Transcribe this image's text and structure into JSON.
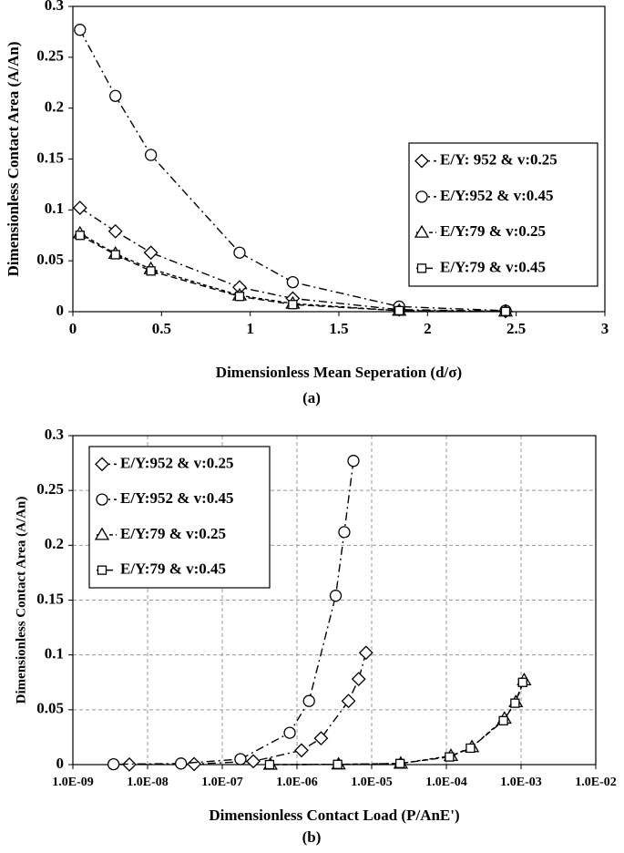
{
  "chart_data": [
    {
      "type": "line",
      "caption": "(a)",
      "x_label": "Dimensionless Mean  Seperation (d/σ)",
      "y_label": "Dimensionless Contact Area (A/An)",
      "x": [
        0.04,
        0.24,
        0.44,
        0.94,
        1.24,
        1.84,
        2.44
      ],
      "xlim": [
        0,
        3
      ],
      "xticks": [
        0,
        0.5,
        1,
        1.5,
        2,
        2.5,
        3
      ],
      "ylim": [
        0,
        0.3
      ],
      "yticks": [
        0,
        0.05,
        0.1,
        0.15,
        0.2,
        0.25,
        0.3
      ],
      "grid": false,
      "log_x": false,
      "legend": "center right",
      "series": [
        {
          "name": "E/Y: 952 & v:0.25",
          "color": "#000000",
          "marker": "diamond",
          "linestyle": "dashdot",
          "values": [
            0.102,
            0.079,
            0.058,
            0.024,
            0.013,
            0.002,
            0.0005
          ]
        },
        {
          "name": "E/Y:952 & v:0.45",
          "color": "#000000",
          "marker": "circle",
          "linestyle": "dashdot",
          "values": [
            0.277,
            0.212,
            0.154,
            0.058,
            0.029,
            0.005,
            0.001
          ]
        },
        {
          "name": "E/Y:79 & v:0.25",
          "color": "#000000",
          "marker": "triangle",
          "linestyle": "dotted",
          "values": [
            0.077,
            0.057,
            0.042,
            0.016,
            0.008,
            0.001,
            0.0002
          ]
        },
        {
          "name": "E/Y:79 & v:0.45",
          "color": "#000000",
          "marker": "square",
          "linestyle": "dashed",
          "values": [
            0.075,
            0.056,
            0.04,
            0.015,
            0.007,
            0.001,
            0.0002
          ]
        }
      ]
    },
    {
      "type": "line",
      "caption": "(b)",
      "x_label": "Dimensionless Contact Load (P/AnE')",
      "y_label": "Dimensionless Contact Area (A/An)",
      "xlim": [
        1e-09,
        0.01
      ],
      "xticks": [
        {
          "value": 1e-09,
          "label": "1.0E-09"
        },
        {
          "value": 1e-08,
          "label": "1.0E-08"
        },
        {
          "value": 1e-07,
          "label": "1.0E-07"
        },
        {
          "value": 1e-06,
          "label": "1.0E-06"
        },
        {
          "value": 1e-05,
          "label": "1.0E-05"
        },
        {
          "value": 0.0001,
          "label": "1.0E-04"
        },
        {
          "value": 0.001,
          "label": "1.0E-03"
        },
        {
          "value": 0.01,
          "label": "1.0E-02"
        }
      ],
      "ylim": [
        0,
        0.3
      ],
      "yticks": [
        0,
        0.05,
        0.1,
        0.15,
        0.2,
        0.25,
        0.3
      ],
      "grid": true,
      "log_x": true,
      "legend": "upper left",
      "series": [
        {
          "name": "E/Y:952 & v:0.25",
          "color": "#000000",
          "marker": "diamond",
          "linestyle": "dashdot",
          "x": [
            8.4e-06,
            6.7e-06,
            4.9e-06,
            2.1e-06,
            1.15e-06,
            2.6e-07,
            4.2e-08,
            5.7e-09
          ],
          "values": [
            0.102,
            0.078,
            0.058,
            0.024,
            0.013,
            0.003,
            0.0005,
            0.0001
          ]
        },
        {
          "name": "E/Y:952 & v:0.45",
          "color": "#000000",
          "marker": "circle",
          "linestyle": "dashdot",
          "x": [
            5.7e-06,
            4.3e-06,
            3.3e-06,
            1.45e-06,
            8e-07,
            1.75e-07,
            2.8e-08,
            3.5e-09
          ],
          "values": [
            0.277,
            0.212,
            0.154,
            0.058,
            0.029,
            0.005,
            0.001,
            0.0003
          ]
        },
        {
          "name": "E/Y:79 & v:0.25",
          "color": "#000000",
          "marker": "triangle",
          "linestyle": "dotted",
          "x": [
            0.0011,
            0.00085,
            0.0006,
            0.00022,
            0.000115,
            2.45e-05,
            3.6e-06,
            4.4e-07
          ],
          "values": [
            0.077,
            0.057,
            0.042,
            0.016,
            0.008,
            0.001,
            0.0002,
            0
          ]
        },
        {
          "name": "E/Y:79 & v:0.45",
          "color": "#000000",
          "marker": "square",
          "linestyle": "dashed",
          "x": [
            0.00105,
            0.00083,
            0.00058,
            0.00021,
            0.00011,
            2.4e-05,
            3.5e-06,
            4.3e-07
          ],
          "values": [
            0.075,
            0.056,
            0.04,
            0.015,
            0.007,
            0.001,
            0.0002,
            0
          ]
        }
      ]
    }
  ]
}
